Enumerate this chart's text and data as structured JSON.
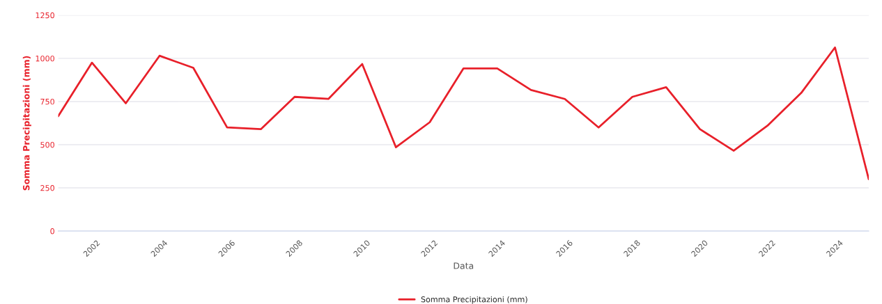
{
  "chart_data": {
    "type": "line",
    "xlabel": "Data",
    "ylabel": "Somma Precipitazioni (mm)",
    "x": [
      2001,
      2002,
      2003,
      2004,
      2005,
      2006,
      2007,
      2008,
      2009,
      2010,
      2011,
      2012,
      2013,
      2014,
      2015,
      2016,
      2017,
      2018,
      2019,
      2020,
      2021,
      2022,
      2023,
      2024,
      2025
    ],
    "series": [
      {
        "name": "Somma Precipitazioni (mm)",
        "color": "#e8202a",
        "values": [
          665,
          975,
          740,
          1015,
          945,
          600,
          590,
          777,
          765,
          967,
          485,
          630,
          942,
          942,
          817,
          765,
          600,
          777,
          833,
          590,
          465,
          610,
          800,
          1063,
          300
        ]
      }
    ],
    "xlim": [
      2001,
      2025
    ],
    "xticks": [
      2002,
      2004,
      2006,
      2008,
      2010,
      2012,
      2014,
      2016,
      2018,
      2020,
      2022,
      2024
    ],
    "ylim": [
      0,
      1250
    ],
    "yticks": [
      0,
      250,
      500,
      750,
      1000,
      1250
    ],
    "grid": "y",
    "legend": "bottom",
    "marker": "none",
    "line_style": "solid"
  }
}
